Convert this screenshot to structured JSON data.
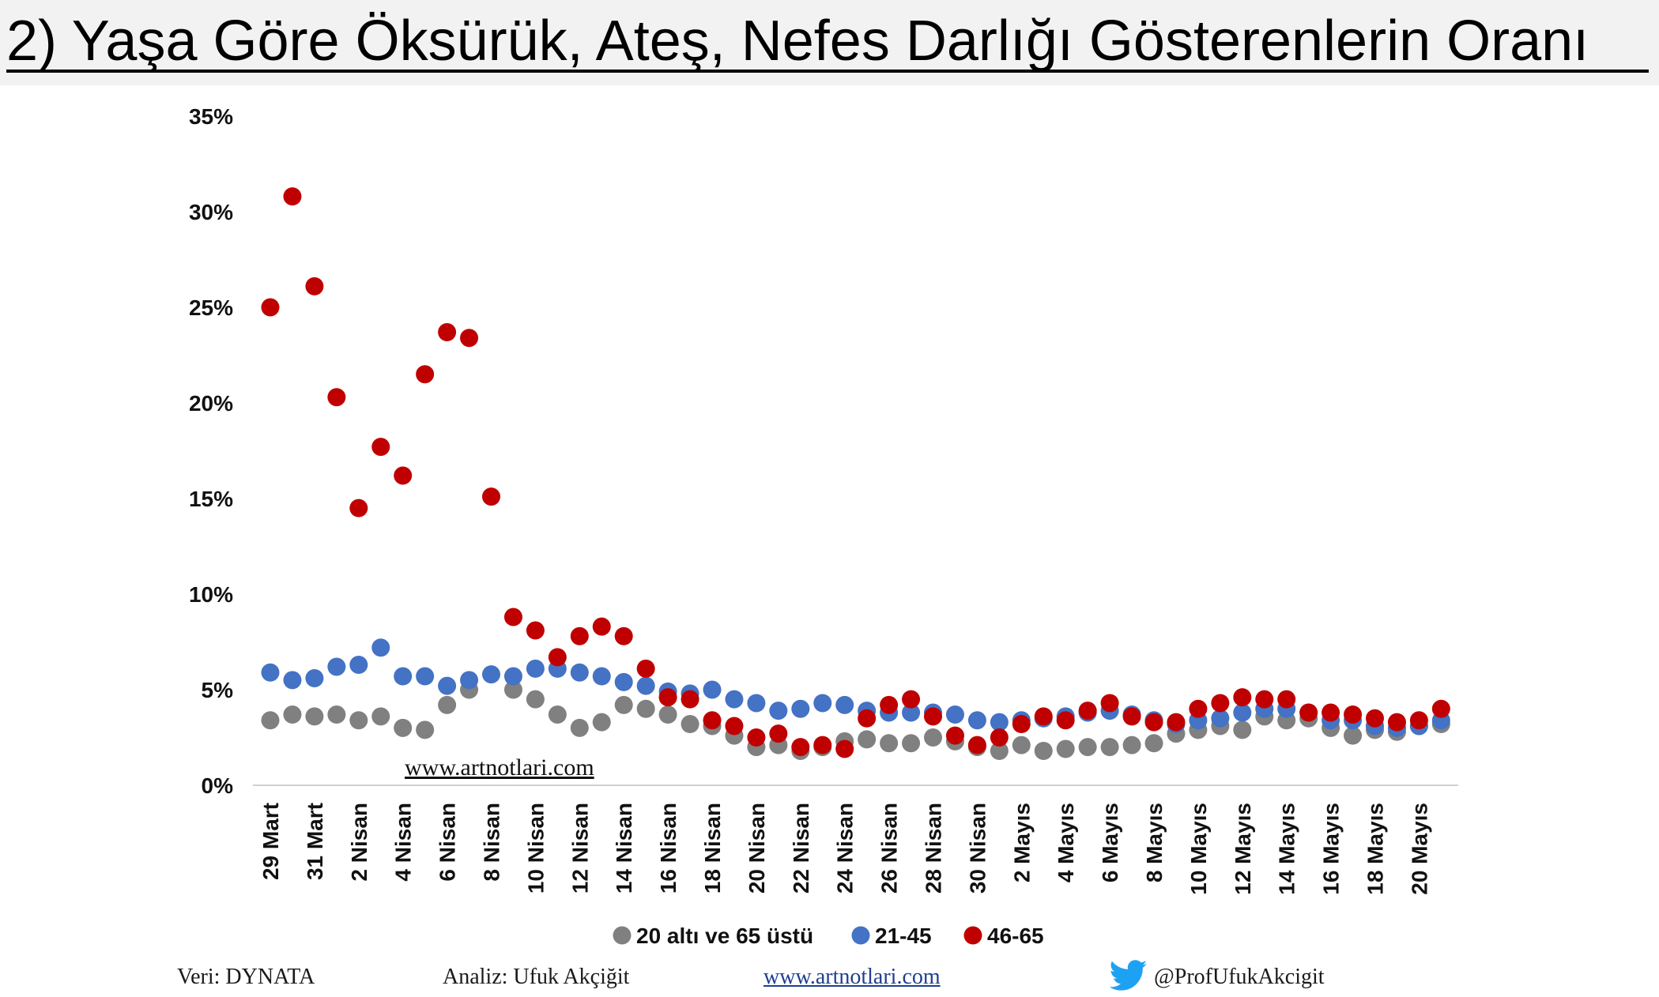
{
  "header": {
    "title": "2) Yaşa Göre Öksürük, Ateş, Nefes Darlığı Gösterenlerin Oranı"
  },
  "watermark": "www.artnotlari.com",
  "footer": {
    "source": "Veri: DYNATA",
    "analysis": "Analiz: Ufuk Akçiğit",
    "website": "www.artnotlari.com",
    "twitter": "@ProfUfukAkcigit",
    "twitter_icon": "twitter-bird-icon",
    "twitter_color": "#1da1f2"
  },
  "chart_data": {
    "type": "scatter",
    "title": "",
    "xlabel": "",
    "ylabel": "",
    "ylim": [
      0,
      35
    ],
    "yticks": [
      "0%",
      "5%",
      "10%",
      "15%",
      "20%",
      "25%",
      "30%",
      "35%"
    ],
    "grid": false,
    "legend_position": "bottom",
    "x": [
      "29 Mart",
      "30 Mart",
      "31 Mart",
      "1 Nisan",
      "2 Nisan",
      "3 Nisan",
      "4 Nisan",
      "5 Nisan",
      "6 Nisan",
      "7 Nisan",
      "8 Nisan",
      "9 Nisan",
      "10 Nisan",
      "11 Nisan",
      "12 Nisan",
      "13 Nisan",
      "14 Nisan",
      "15 Nisan",
      "16 Nisan",
      "17 Nisan",
      "18 Nisan",
      "19 Nisan",
      "20 Nisan",
      "21 Nisan",
      "22 Nisan",
      "23 Nisan",
      "24 Nisan",
      "25 Nisan",
      "26 Nisan",
      "27 Nisan",
      "28 Nisan",
      "29 Nisan",
      "30 Nisan",
      "1 Mayıs",
      "2 Mayıs",
      "3 Mayıs",
      "4 Mayıs",
      "5 Mayıs",
      "6 Mayıs",
      "7 Mayıs",
      "8 Mayıs",
      "9 Mayıs",
      "10 Mayıs",
      "11 Mayıs",
      "12 Mayıs",
      "13 Mayıs",
      "14 Mayıs",
      "15 Mayıs",
      "16 Mayıs",
      "17 Mayıs",
      "18 Mayıs",
      "19 Mayıs",
      "20 Mayıs",
      "21 Mayıs"
    ],
    "x_tick_labels": [
      "29 Mart",
      "31 Mart",
      "2 Nisan",
      "4 Nisan",
      "6 Nisan",
      "8 Nisan",
      "10 Nisan",
      "12 Nisan",
      "14 Nisan",
      "16 Nisan",
      "18 Nisan",
      "20 Nisan",
      "22 Nisan",
      "24 Nisan",
      "26 Nisan",
      "28 Nisan",
      "30 Nisan",
      "2 Mayıs",
      "4 Mayıs",
      "6 Mayıs",
      "8 Mayıs",
      "10 Mayıs",
      "12 Mayıs",
      "14 Mayıs",
      "16 Mayıs",
      "18 Mayıs",
      "20 Mayıs"
    ],
    "series": [
      {
        "name": "20 altı ve 65 üstü",
        "color": "#808080",
        "values": [
          3.4,
          3.7,
          3.6,
          3.7,
          3.4,
          3.6,
          3.0,
          2.9,
          4.2,
          5.0,
          null,
          5.0,
          4.5,
          3.7,
          3.0,
          3.3,
          4.2,
          4.0,
          3.7,
          3.2,
          3.1,
          2.6,
          2.0,
          2.1,
          1.8,
          2.0,
          2.3,
          2.4,
          2.2,
          2.2,
          2.5,
          2.3,
          2.0,
          1.8,
          2.1,
          1.8,
          1.9,
          2.0,
          2.0,
          2.1,
          2.2,
          2.7,
          2.9,
          3.1,
          2.9,
          3.6,
          3.4,
          3.5,
          3.0,
          2.6,
          2.9,
          2.8,
          3.1,
          3.2
        ]
      },
      {
        "name": "21-45",
        "color": "#4472c4",
        "values": [
          5.9,
          5.5,
          5.6,
          6.2,
          6.3,
          7.2,
          5.7,
          5.7,
          5.2,
          5.5,
          5.8,
          5.7,
          6.1,
          6.1,
          5.9,
          5.7,
          5.4,
          5.2,
          4.9,
          4.8,
          5.0,
          4.5,
          4.3,
          3.9,
          4.0,
          4.3,
          4.2,
          3.9,
          3.8,
          3.8,
          3.8,
          3.7,
          3.4,
          3.3,
          3.4,
          3.5,
          3.6,
          3.8,
          3.9,
          3.7,
          3.4,
          3.2,
          3.4,
          3.5,
          3.8,
          4.0,
          4.0,
          3.8,
          3.4,
          3.4,
          3.1,
          3.0,
          3.1,
          3.4
        ]
      },
      {
        "name": "46-65",
        "color": "#c00000",
        "values": [
          25.0,
          30.8,
          26.1,
          20.3,
          14.5,
          17.7,
          16.2,
          21.5,
          23.7,
          23.4,
          15.1,
          8.8,
          8.1,
          6.7,
          7.8,
          8.3,
          7.8,
          6.1,
          4.6,
          4.5,
          3.4,
          3.1,
          2.5,
          2.7,
          2.0,
          2.1,
          1.9,
          3.5,
          4.2,
          4.5,
          3.6,
          2.6,
          2.1,
          2.5,
          3.2,
          3.6,
          3.4,
          3.9,
          4.3,
          3.6,
          3.3,
          3.3,
          4.0,
          4.3,
          4.6,
          4.5,
          4.5,
          3.8,
          3.8,
          3.7,
          3.5,
          3.3,
          3.4,
          4.0
        ]
      }
    ]
  }
}
